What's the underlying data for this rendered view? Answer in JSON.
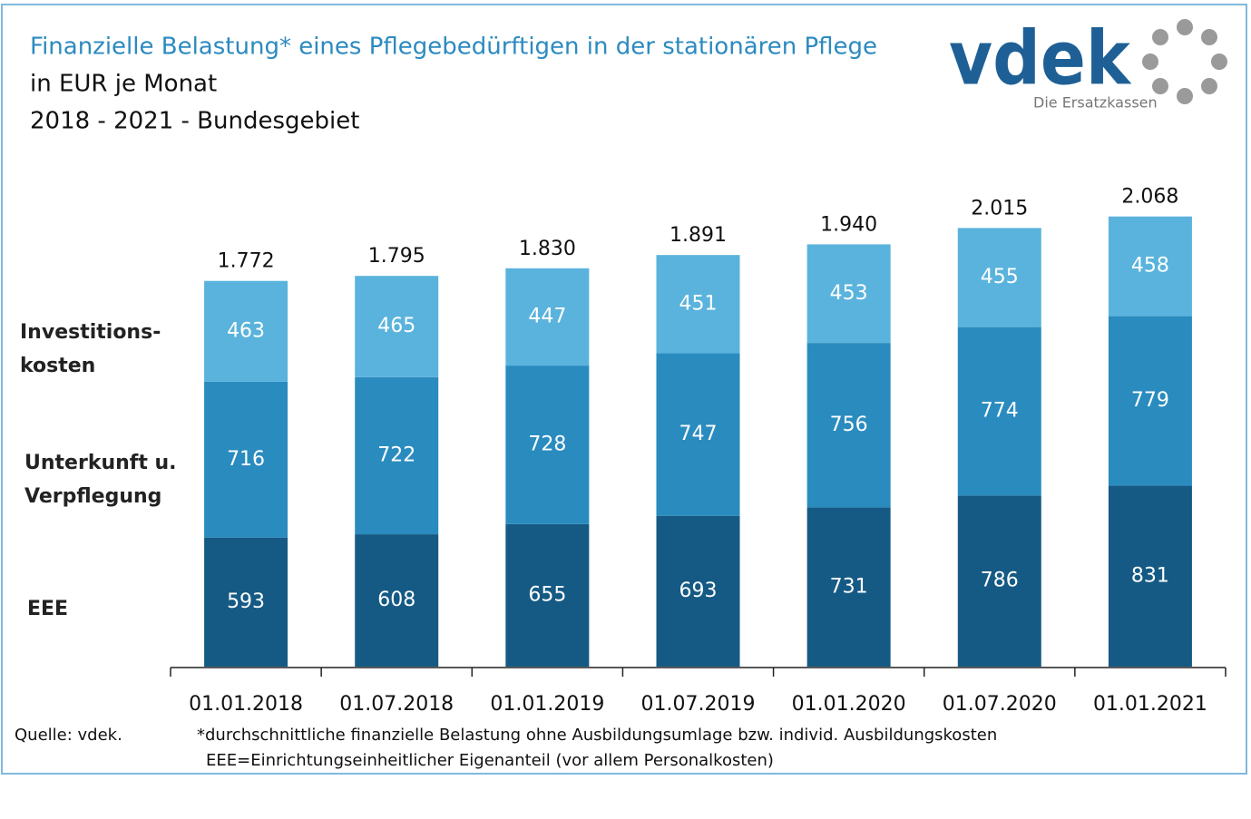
{
  "chart_data": {
    "type": "stacked-bar",
    "title": "Finanzielle Belastung* eines Pflegebedürftigen in der stationären Pflege",
    "subtitle": [
      "in EUR je Monat",
      "2018 - 2021 - Bundesgebiet"
    ],
    "logo": {
      "text": "vdek",
      "tagline": "Die Ersatzkassen"
    },
    "categories": [
      "01.01.2018",
      "01.07.2018",
      "01.01.2019",
      "01.07.2019",
      "01.01.2020",
      "01.07.2020",
      "01.01.2021"
    ],
    "series": [
      {
        "name": [
          "EEE"
        ],
        "color": "#155a84",
        "values": [
          593,
          608,
          655,
          693,
          731,
          786,
          831
        ]
      },
      {
        "name": [
          "Unterkunft u.",
          "Verpflegung"
        ],
        "color": "#2a8bbf",
        "values": [
          716,
          722,
          728,
          747,
          756,
          774,
          779
        ]
      },
      {
        "name": [
          "Investitions-",
          "kosten"
        ],
        "color": "#5ab3dc",
        "values": [
          463,
          465,
          447,
          451,
          453,
          455,
          458
        ]
      }
    ],
    "totals": {
      "values": [
        1772,
        1795,
        1830,
        1891,
        1940,
        2015,
        2068
      ],
      "value_labels": [
        "1.772",
        "1.795",
        "1.830",
        "1.891",
        "1.940",
        "2.015",
        "2.068"
      ]
    },
    "ylim": [
      0,
      2200
    ],
    "source": "Quelle: vdek.",
    "footnotes": [
      "*durchschnittliche finanzielle Belastung ohne Ausbildungsumlage bzw. individ. Ausbildungskosten",
      "EEE=Einrichtungseinheitlicher Eigenanteil (vor allem Personalkosten)"
    ]
  }
}
